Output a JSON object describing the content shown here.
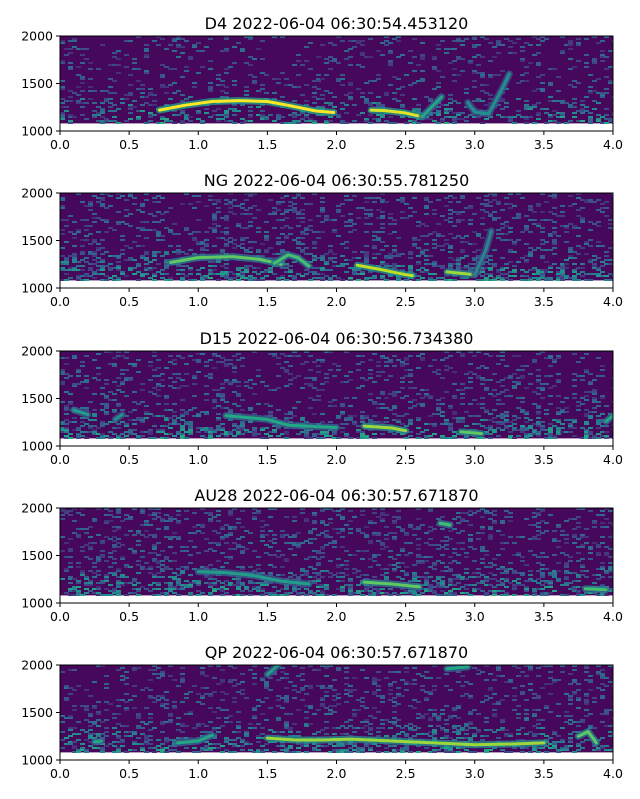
{
  "chart_data": [
    {
      "type": "heatmap",
      "title": "D4 2022-06-04 06:30:54.453120",
      "xlim": [
        0.0,
        4.0
      ],
      "ylim": [
        1000,
        2000
      ],
      "xticks": [
        "0.0",
        "0.5",
        "1.0",
        "1.5",
        "2.0",
        "2.5",
        "3.0",
        "3.5",
        "4.0"
      ],
      "yticks": [
        "1000",
        "1500",
        "2000"
      ],
      "colormap": "viridis",
      "noise": 0.22,
      "tracks": [
        {
          "points": [
            [
              0.72,
              1220
            ],
            [
              0.9,
              1270
            ],
            [
              1.1,
              1310
            ],
            [
              1.3,
              1320
            ],
            [
              1.5,
              1310
            ],
            [
              1.65,
              1270
            ],
            [
              1.85,
              1210
            ],
            [
              1.98,
              1195
            ]
          ],
          "intensity": 1.0
        },
        {
          "points": [
            [
              2.25,
              1220
            ],
            [
              2.35,
              1215
            ],
            [
              2.5,
              1190
            ],
            [
              2.62,
              1150
            ]
          ],
          "intensity": 0.95
        },
        {
          "points": [
            [
              2.62,
              1150
            ],
            [
              2.72,
              1300
            ],
            [
              2.76,
              1360
            ]
          ],
          "intensity": 0.6
        },
        {
          "points": [
            [
              2.95,
              1300
            ],
            [
              3.0,
              1200
            ],
            [
              3.1,
              1180
            ],
            [
              3.2,
              1450
            ],
            [
              3.25,
              1600
            ]
          ],
          "intensity": 0.5
        }
      ]
    },
    {
      "type": "heatmap",
      "title": "NG 2022-06-04 06:30:55.781250",
      "xlim": [
        0.0,
        4.0
      ],
      "ylim": [
        1000,
        2000
      ],
      "xticks": [
        "0.0",
        "0.5",
        "1.0",
        "1.5",
        "2.0",
        "2.5",
        "3.0",
        "3.5",
        "4.0"
      ],
      "yticks": [
        "1000",
        "1500",
        "2000"
      ],
      "colormap": "viridis",
      "noise": 0.3,
      "tracks": [
        {
          "points": [
            [
              0.8,
              1270
            ],
            [
              1.0,
              1320
            ],
            [
              1.25,
              1330
            ],
            [
              1.45,
              1300
            ],
            [
              1.6,
              1250
            ]
          ],
          "intensity": 0.75
        },
        {
          "points": [
            [
              1.55,
              1260
            ],
            [
              1.65,
              1350
            ],
            [
              1.72,
              1320
            ],
            [
              1.8,
              1230
            ]
          ],
          "intensity": 0.7
        },
        {
          "points": [
            [
              2.15,
              1240
            ],
            [
              2.3,
              1200
            ],
            [
              2.5,
              1140
            ],
            [
              2.55,
              1130
            ]
          ],
          "intensity": 0.9
        },
        {
          "points": [
            [
              2.8,
              1170
            ],
            [
              3.0,
              1140
            ]
          ],
          "intensity": 0.85
        },
        {
          "points": [
            [
              3.0,
              1140
            ],
            [
              3.08,
              1400
            ],
            [
              3.12,
              1600
            ]
          ],
          "intensity": 0.45
        }
      ]
    },
    {
      "type": "heatmap",
      "title": "D15 2022-06-04 06:30:56.734380",
      "xlim": [
        0.0,
        4.0
      ],
      "ylim": [
        1000,
        2000
      ],
      "xticks": [
        "0.0",
        "0.5",
        "1.0",
        "1.5",
        "2.0",
        "2.5",
        "3.0",
        "3.5",
        "4.0"
      ],
      "yticks": [
        "1000",
        "1500",
        "2000"
      ],
      "colormap": "viridis",
      "noise": 0.28,
      "tracks": [
        {
          "points": [
            [
              0.1,
              1380
            ],
            [
              0.2,
              1330
            ]
          ],
          "intensity": 0.55
        },
        {
          "points": [
            [
              0.4,
              1280
            ],
            [
              0.45,
              1330
            ]
          ],
          "intensity": 0.5
        },
        {
          "points": [
            [
              1.2,
              1320
            ],
            [
              1.5,
              1280
            ],
            [
              1.65,
              1220
            ],
            [
              1.9,
              1200
            ],
            [
              2.0,
              1195
            ]
          ],
          "intensity": 0.6
        },
        {
          "points": [
            [
              2.2,
              1210
            ],
            [
              2.4,
              1190
            ],
            [
              2.5,
              1160
            ]
          ],
          "intensity": 0.85
        },
        {
          "points": [
            [
              2.9,
              1150
            ],
            [
              3.05,
              1130
            ]
          ],
          "intensity": 0.75
        },
        {
          "points": [
            [
              3.95,
              1260
            ],
            [
              4.0,
              1320
            ]
          ],
          "intensity": 0.6
        }
      ]
    },
    {
      "type": "heatmap",
      "title": "AU28 2022-06-04 06:30:57.671870",
      "xlim": [
        0.0,
        4.0
      ],
      "ylim": [
        1000,
        2000
      ],
      "xticks": [
        "0.0",
        "0.5",
        "1.0",
        "1.5",
        "2.0",
        "2.5",
        "3.0",
        "3.5",
        "4.0"
      ],
      "yticks": [
        "1000",
        "1500",
        "2000"
      ],
      "colormap": "viridis",
      "noise": 0.3,
      "tracks": [
        {
          "points": [
            [
              1.0,
              1330
            ],
            [
              1.2,
              1320
            ],
            [
              1.4,
              1290
            ],
            [
              1.6,
              1230
            ],
            [
              1.8,
              1200
            ]
          ],
          "intensity": 0.55
        },
        {
          "points": [
            [
              2.2,
              1220
            ],
            [
              2.4,
              1200
            ],
            [
              2.6,
              1170
            ]
          ],
          "intensity": 0.75
        },
        {
          "points": [
            [
              2.75,
              1840
            ],
            [
              2.82,
              1820
            ]
          ],
          "intensity": 0.7
        },
        {
          "points": [
            [
              3.8,
              1150
            ],
            [
              3.95,
              1140
            ]
          ],
          "intensity": 0.7
        }
      ]
    },
    {
      "type": "heatmap",
      "title": "QP 2022-06-04 06:30:57.671870",
      "xlim": [
        0.0,
        4.0
      ],
      "ylim": [
        1000,
        2000
      ],
      "xticks": [
        "0.0",
        "0.5",
        "1.0",
        "1.5",
        "2.0",
        "2.5",
        "3.0",
        "3.5",
        "4.0"
      ],
      "yticks": [
        "1000",
        "1500",
        "2000"
      ],
      "colormap": "viridis",
      "noise": 0.27,
      "tracks": [
        {
          "points": [
            [
              0.25,
              1190
            ],
            [
              0.3,
              1200
            ]
          ],
          "intensity": 0.6
        },
        {
          "points": [
            [
              0.85,
              1180
            ],
            [
              1.0,
              1200
            ],
            [
              1.1,
              1260
            ]
          ],
          "intensity": 0.6
        },
        {
          "points": [
            [
              1.5,
              1230
            ],
            [
              1.7,
              1210
            ],
            [
              1.9,
              1210
            ],
            [
              2.1,
              1220
            ],
            [
              2.4,
              1200
            ],
            [
              2.7,
              1180
            ],
            [
              3.0,
              1160
            ],
            [
              3.3,
              1170
            ],
            [
              3.5,
              1180
            ]
          ],
          "intensity": 0.85
        },
        {
          "points": [
            [
              1.5,
              1900
            ],
            [
              1.58,
              2000
            ]
          ],
          "intensity": 0.55
        },
        {
          "points": [
            [
              2.8,
              1960
            ],
            [
              2.95,
              1980
            ]
          ],
          "intensity": 0.6
        },
        {
          "points": [
            [
              3.75,
              1250
            ],
            [
              3.82,
              1300
            ],
            [
              3.88,
              1180
            ]
          ],
          "intensity": 0.75
        }
      ]
    }
  ]
}
